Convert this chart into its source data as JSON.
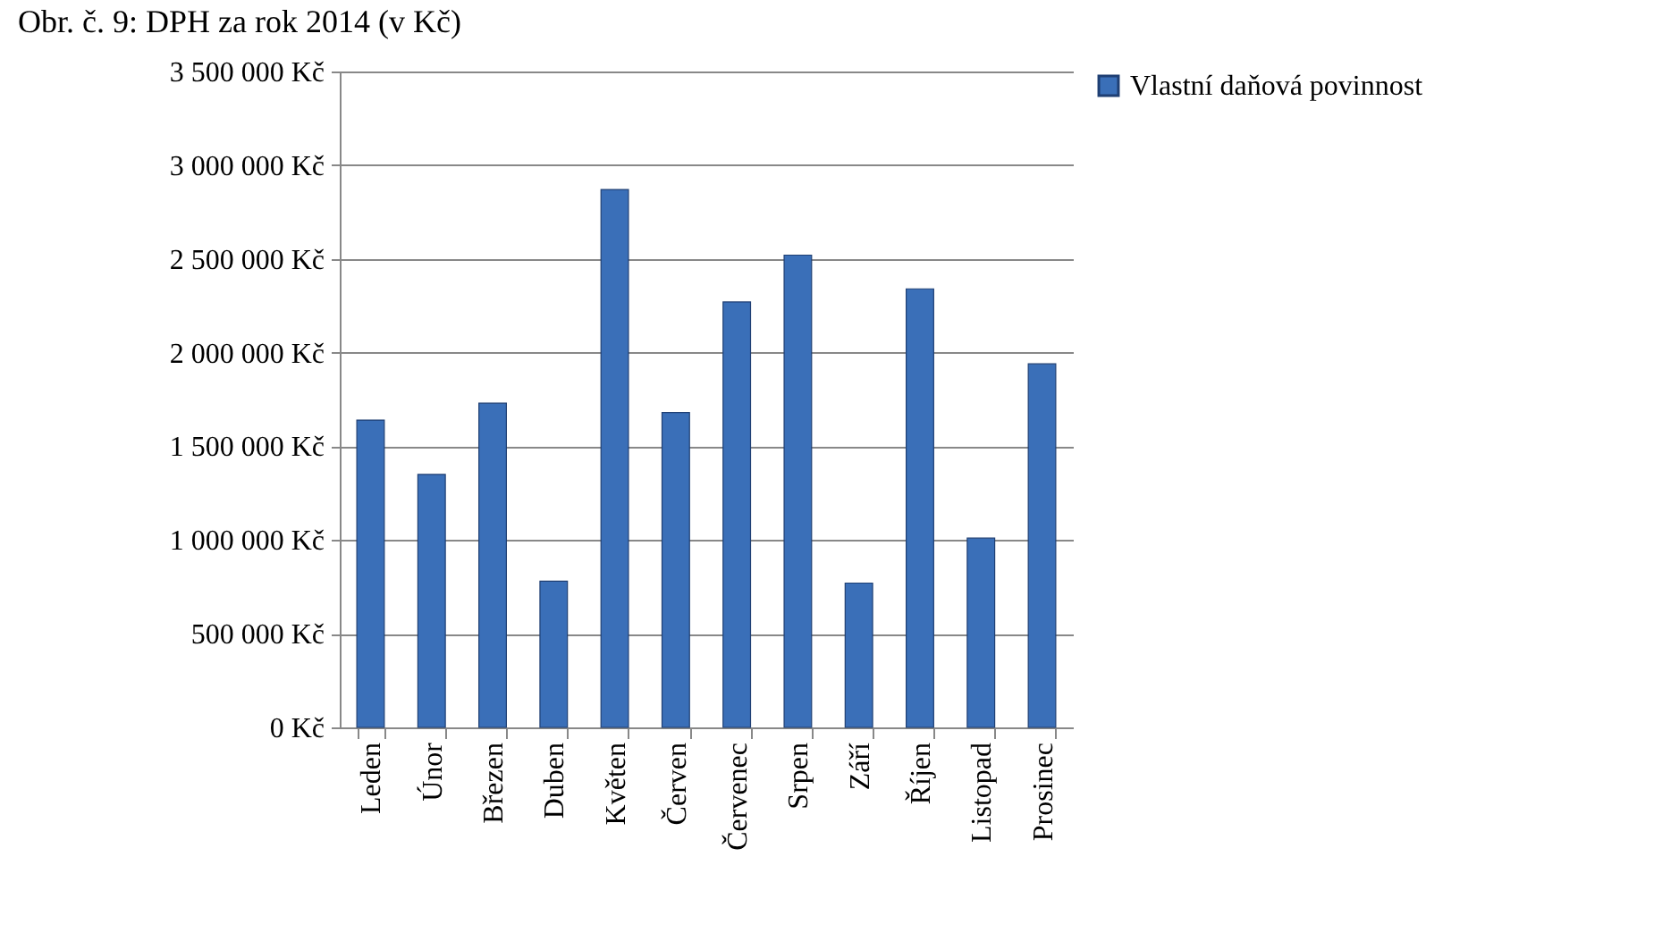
{
  "chart_data": {
    "type": "bar",
    "title": "Obr. č. 9: DPH za rok 2014 (v Kč)",
    "categories": [
      "Leden",
      "Únor",
      "Březen",
      "Duben",
      "Květen",
      "Červen",
      "Červenec",
      "Srpen",
      "Září",
      "Říjen",
      "Listopad",
      "Prosinec"
    ],
    "series": [
      {
        "name": "Vlastní daňová povinnost",
        "color": "#3a6fb8",
        "values": [
          1640000,
          1350000,
          1730000,
          780000,
          2870000,
          1680000,
          2270000,
          2520000,
          770000,
          2340000,
          1010000,
          1940000
        ]
      }
    ],
    "ylim": [
      0,
      3500000
    ],
    "yticks": [
      {
        "value": 0,
        "label": "0 Kč"
      },
      {
        "value": 500000,
        "label": "500 000 Kč"
      },
      {
        "value": 1000000,
        "label": "1 000 000 Kč"
      },
      {
        "value": 1500000,
        "label": "1 500 000 Kč"
      },
      {
        "value": 2000000,
        "label": "2 000 000 Kč"
      },
      {
        "value": 2500000,
        "label": "2 500 000 Kč"
      },
      {
        "value": 3000000,
        "label": "3 000 000 Kč"
      },
      {
        "value": 3500000,
        "label": "3 500 000 Kč"
      }
    ],
    "grid": "y",
    "legend": "right"
  }
}
